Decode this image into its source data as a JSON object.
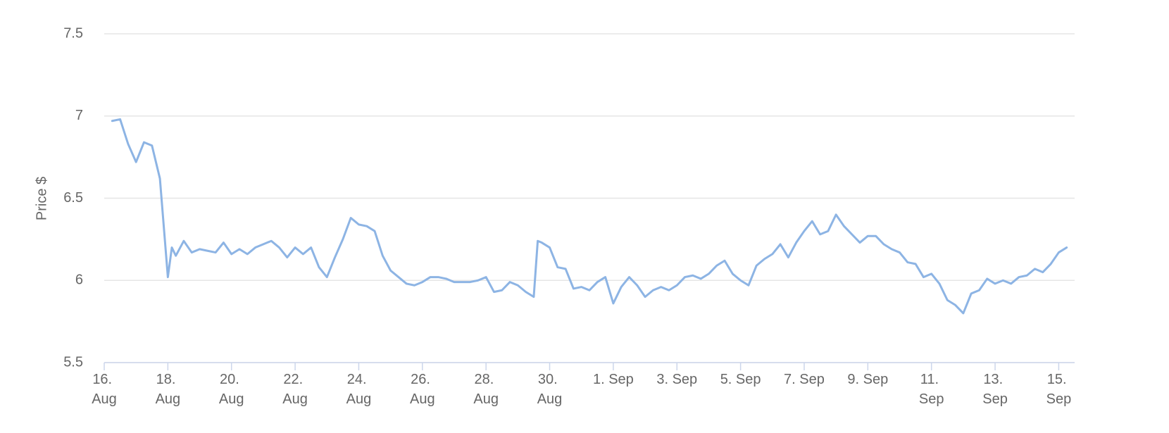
{
  "chart_data": {
    "type": "line",
    "y_label": "Price $",
    "color": "#8db4e4",
    "x": [
      "08-16T06:00",
      "08-16T12:00",
      "08-16T18:00",
      "08-17T00:00",
      "08-17T06:00",
      "08-17T12:00",
      "08-17T18:00",
      "08-18T00:00",
      "08-18T03:00",
      "08-18T06:00",
      "08-18T12:00",
      "08-18T18:00",
      "08-19T00:00",
      "08-19T06:00",
      "08-19T12:00",
      "08-19T18:00",
      "08-20T00:00",
      "08-20T06:00",
      "08-20T12:00",
      "08-20T18:00",
      "08-21T00:00",
      "08-21T06:00",
      "08-21T12:00",
      "08-21T18:00",
      "08-22T00:00",
      "08-22T06:00",
      "08-22T12:00",
      "08-22T18:00",
      "08-23T00:00",
      "08-23T06:00",
      "08-23T12:00",
      "08-23T18:00",
      "08-24T00:00",
      "08-24T06:00",
      "08-24T12:00",
      "08-24T18:00",
      "08-25T00:00",
      "08-25T06:00",
      "08-25T12:00",
      "08-25T18:00",
      "08-26T00:00",
      "08-26T06:00",
      "08-26T12:00",
      "08-26T18:00",
      "08-27T00:00",
      "08-27T06:00",
      "08-27T12:00",
      "08-27T18:00",
      "08-28T00:00",
      "08-28T06:00",
      "08-28T12:00",
      "08-28T18:00",
      "08-29T00:00",
      "08-29T06:00",
      "08-29T12:00",
      "08-29T15:00",
      "08-29T18:00",
      "08-30T00:00",
      "08-30T06:00",
      "08-30T12:00",
      "08-30T18:00",
      "08-31T00:00",
      "08-31T06:00",
      "08-31T12:00",
      "08-31T18:00",
      "09-01T00:00",
      "09-01T06:00",
      "09-01T12:00",
      "09-01T18:00",
      "09-02T00:00",
      "09-02T06:00",
      "09-02T12:00",
      "09-02T18:00",
      "09-03T00:00",
      "09-03T06:00",
      "09-03T12:00",
      "09-03T18:00",
      "09-04T00:00",
      "09-04T06:00",
      "09-04T12:00",
      "09-04T18:00",
      "09-05T00:00",
      "09-05T06:00",
      "09-05T12:00",
      "09-05T18:00",
      "09-06T00:00",
      "09-06T06:00",
      "09-06T12:00",
      "09-06T18:00",
      "09-07T00:00",
      "09-07T06:00",
      "09-07T12:00",
      "09-07T18:00",
      "09-08T00:00",
      "09-08T06:00",
      "09-08T12:00",
      "09-08T18:00",
      "09-09T00:00",
      "09-09T06:00",
      "09-09T12:00",
      "09-09T18:00",
      "09-10T00:00",
      "09-10T06:00",
      "09-10T12:00",
      "09-10T18:00",
      "09-11T00:00",
      "09-11T06:00",
      "09-11T12:00",
      "09-11T18:00",
      "09-12T00:00",
      "09-12T06:00",
      "09-12T12:00",
      "09-12T18:00",
      "09-13T00:00",
      "09-13T06:00",
      "09-13T12:00",
      "09-13T18:00",
      "09-14T00:00",
      "09-14T06:00",
      "09-14T12:00",
      "09-14T18:00",
      "09-15T00:00",
      "09-15T06:00"
    ],
    "values": [
      6.97,
      6.98,
      6.83,
      6.72,
      6.84,
      6.82,
      6.62,
      6.02,
      6.2,
      6.15,
      6.24,
      6.17,
      6.19,
      6.18,
      6.17,
      6.23,
      6.16,
      6.19,
      6.16,
      6.2,
      6.22,
      6.24,
      6.2,
      6.14,
      6.2,
      6.16,
      6.2,
      6.08,
      6.02,
      6.14,
      6.25,
      6.38,
      6.34,
      6.33,
      6.3,
      6.15,
      6.06,
      6.02,
      5.98,
      5.97,
      5.99,
      6.02,
      6.02,
      6.01,
      5.99,
      5.99,
      5.99,
      6.0,
      6.02,
      5.93,
      5.94,
      5.99,
      5.97,
      5.93,
      5.9,
      6.24,
      6.23,
      6.2,
      6.08,
      6.07,
      5.95,
      5.96,
      5.94,
      5.99,
      6.02,
      5.86,
      5.96,
      6.02,
      5.97,
      5.9,
      5.94,
      5.96,
      5.94,
      5.97,
      6.02,
      6.03,
      6.01,
      6.04,
      6.09,
      6.12,
      6.04,
      6.0,
      5.97,
      6.09,
      6.13,
      6.16,
      6.22,
      6.14,
      6.23,
      6.3,
      6.36,
      6.28,
      6.3,
      6.4,
      6.33,
      6.28,
      6.23,
      6.27,
      6.27,
      6.22,
      6.19,
      6.17,
      6.11,
      6.1,
      6.02,
      6.04,
      5.98,
      5.88,
      5.85,
      5.8,
      5.92,
      5.94,
      6.01,
      5.98,
      6.0,
      5.98,
      6.02,
      6.03,
      6.07,
      6.05,
      6.1,
      6.17,
      6.2
    ],
    "xlim": [
      "08-16T00:00",
      "09-15T12:00"
    ],
    "xticks": [
      {
        "value": "08-16T00:00",
        "label": "16. Aug"
      },
      {
        "value": "08-18T00:00",
        "label": "18. Aug"
      },
      {
        "value": "08-20T00:00",
        "label": "20. Aug"
      },
      {
        "value": "08-22T00:00",
        "label": "22. Aug"
      },
      {
        "value": "08-24T00:00",
        "label": "24. Aug"
      },
      {
        "value": "08-26T00:00",
        "label": "26. Aug"
      },
      {
        "value": "08-28T00:00",
        "label": "28. Aug"
      },
      {
        "value": "08-30T00:00",
        "label": "30. Aug"
      },
      {
        "value": "09-01T00:00",
        "label": "1. Sep"
      },
      {
        "value": "09-03T00:00",
        "label": "3. Sep"
      },
      {
        "value": "09-05T00:00",
        "label": "5. Sep"
      },
      {
        "value": "09-07T00:00",
        "label": "7. Sep"
      },
      {
        "value": "09-09T00:00",
        "label": "9. Sep"
      },
      {
        "value": "09-11T00:00",
        "label": "11. Sep"
      },
      {
        "value": "09-13T00:00",
        "label": "13. Sep"
      },
      {
        "value": "09-15T00:00",
        "label": "15. Sep"
      }
    ],
    "ylim": [
      5.5,
      7.5
    ],
    "yticks": [
      5.5,
      6,
      6.5,
      7,
      7.5
    ],
    "grid": true
  }
}
